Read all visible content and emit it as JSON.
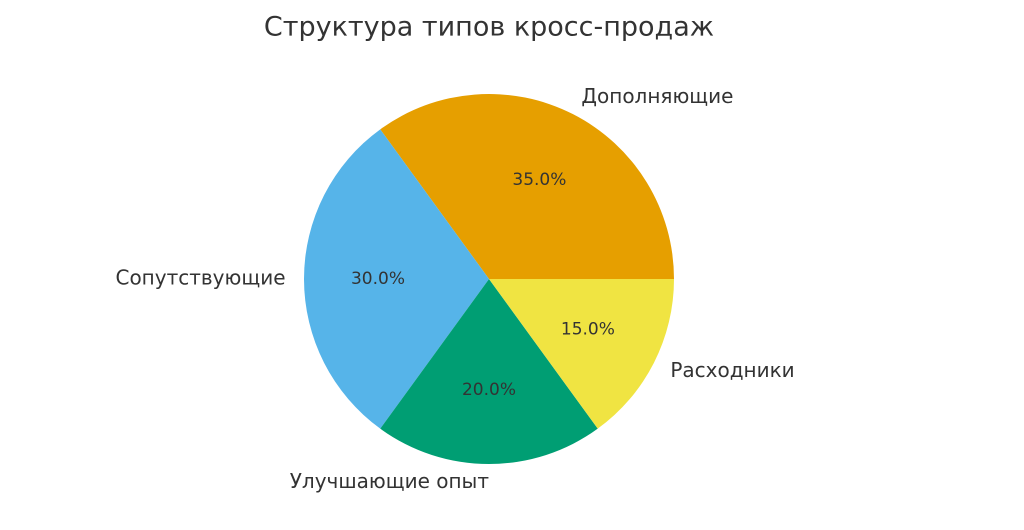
{
  "chart_data": {
    "type": "pie",
    "title": "Структура типов кросс-продаж",
    "categories": [
      "Дополняющие",
      "Сопутствующие",
      "Улучшающие опыт",
      "Расходники"
    ],
    "values": [
      35,
      30,
      20,
      15
    ],
    "value_labels": [
      "35.0%",
      "30.0%",
      "20.0%",
      "15.0%"
    ],
    "colors": [
      "#E69F00",
      "#56B4E9",
      "#009E73",
      "#F0E442"
    ]
  }
}
